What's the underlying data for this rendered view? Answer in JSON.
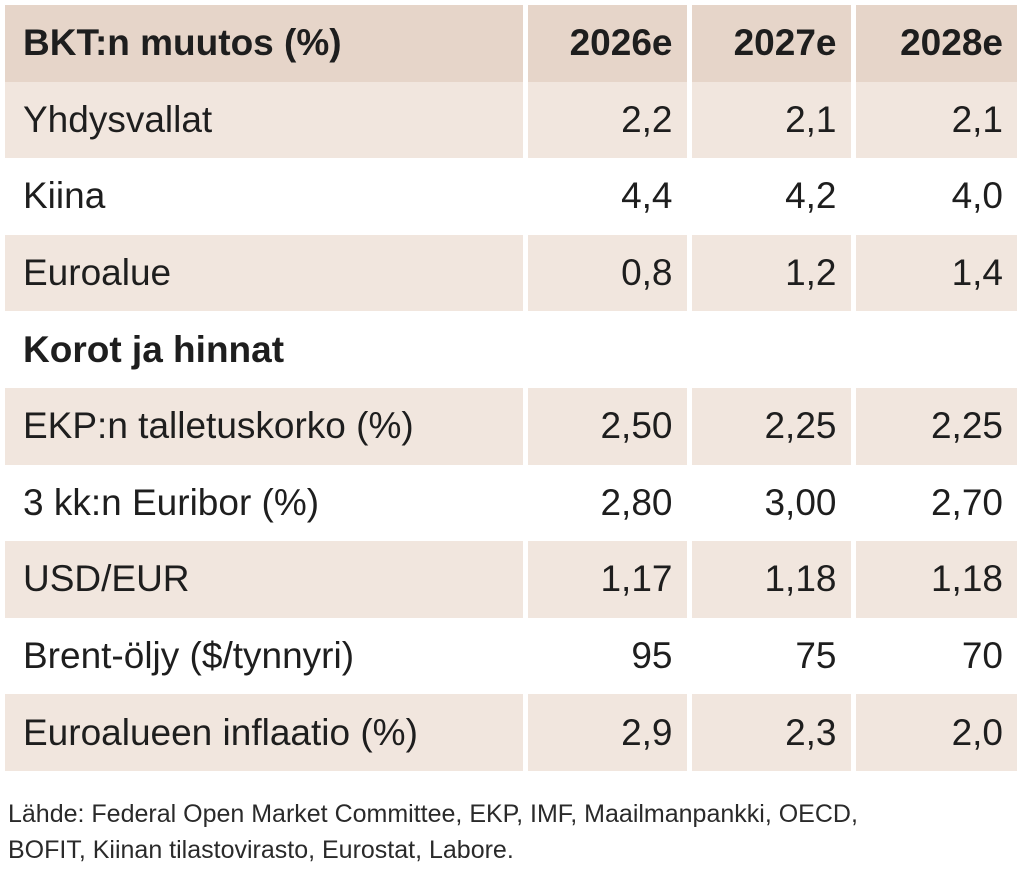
{
  "table": {
    "header": {
      "label": "BKT:n muutos (%)",
      "years": [
        "2026e",
        "2027e",
        "2028e"
      ]
    },
    "rows": [
      {
        "label": "Yhdysvallat",
        "values": [
          "2,2",
          "2,1",
          "2,1"
        ]
      },
      {
        "label": "Kiina",
        "values": [
          "4,4",
          "4,2",
          "4,0"
        ]
      },
      {
        "label": "Euroalue",
        "values": [
          "0,8",
          "1,2",
          "1,4"
        ]
      },
      {
        "label": "Korot ja hinnat",
        "values": [
          "",
          "",
          ""
        ]
      },
      {
        "label": "EKP:n talletuskorko (%)",
        "values": [
          "2,50",
          "2,25",
          "2,25"
        ]
      },
      {
        "label": "3 kk:n Euribor (%)",
        "values": [
          "2,80",
          "3,00",
          "2,70"
        ]
      },
      {
        "label": "USD/EUR",
        "values": [
          "1,17",
          "1,18",
          "1,18"
        ]
      },
      {
        "label": "Brent-öljy ($/tynnyri)",
        "values": [
          "95",
          "75",
          "70"
        ]
      },
      {
        "label": "Euroalueen inflaatio (%)",
        "values": [
          "2,9",
          "2,3",
          "2,0"
        ]
      }
    ]
  },
  "source_line1": "Lähde: Federal Open Market Committee, EKP, IMF, Maailmanpankki, OECD,",
  "source_line2": "BOFIT, Kiinan tilastovirasto, Eurostat, Labore.",
  "colors": {
    "header_bg": "#e6d5c9",
    "shade_row_bg": "#f1e6de",
    "plain_row_bg": "#ffffff"
  }
}
